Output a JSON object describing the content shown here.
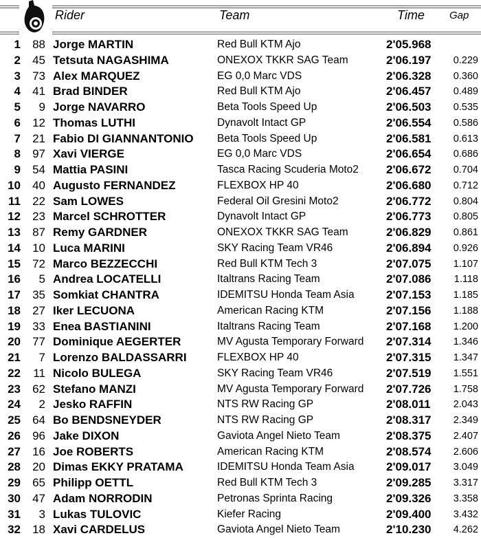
{
  "header": {
    "rider": "Rider",
    "team": "Team",
    "time": "Time",
    "gap": "Gap",
    "logo_icon": "motorcycle-rider-icon"
  },
  "rows": [
    {
      "pos": "1",
      "num": "88",
      "rider": "Jorge MARTIN",
      "team": "Red Bull KTM Ajo",
      "time": "2'05.968",
      "gap": ""
    },
    {
      "pos": "2",
      "num": "45",
      "rider": "Tetsuta NAGASHIMA",
      "team": "ONEXOX TKKR SAG Team",
      "time": "2'06.197",
      "gap": "0.229"
    },
    {
      "pos": "3",
      "num": "73",
      "rider": "Alex MARQUEZ",
      "team": "EG 0,0 Marc VDS",
      "time": "2'06.328",
      "gap": "0.360"
    },
    {
      "pos": "4",
      "num": "41",
      "rider": "Brad BINDER",
      "team": "Red Bull KTM Ajo",
      "time": "2'06.457",
      "gap": "0.489"
    },
    {
      "pos": "5",
      "num": "9",
      "rider": "Jorge NAVARRO",
      "team": "Beta Tools Speed Up",
      "time": "2'06.503",
      "gap": "0.535"
    },
    {
      "pos": "6",
      "num": "12",
      "rider": "Thomas LUTHI",
      "team": "Dynavolt Intact GP",
      "time": "2'06.554",
      "gap": "0.586"
    },
    {
      "pos": "7",
      "num": "21",
      "rider": "Fabio DI GIANNANTONIO",
      "team": "Beta Tools Speed Up",
      "time": "2'06.581",
      "gap": "0.613"
    },
    {
      "pos": "8",
      "num": "97",
      "rider": "Xavi VIERGE",
      "team": "EG 0,0 Marc VDS",
      "time": "2'06.654",
      "gap": "0.686"
    },
    {
      "pos": "9",
      "num": "54",
      "rider": "Mattia PASINI",
      "team": "Tasca Racing Scuderia Moto2",
      "time": "2'06.672",
      "gap": "0.704"
    },
    {
      "pos": "10",
      "num": "40",
      "rider": "Augusto FERNANDEZ",
      "team": "FLEXBOX HP 40",
      "time": "2'06.680",
      "gap": "0.712"
    },
    {
      "pos": "11",
      "num": "22",
      "rider": "Sam LOWES",
      "team": "Federal Oil Gresini Moto2",
      "time": "2'06.772",
      "gap": "0.804"
    },
    {
      "pos": "12",
      "num": "23",
      "rider": "Marcel SCHROTTER",
      "team": "Dynavolt Intact GP",
      "time": "2'06.773",
      "gap": "0.805"
    },
    {
      "pos": "13",
      "num": "87",
      "rider": "Remy GARDNER",
      "team": "ONEXOX TKKR SAG Team",
      "time": "2'06.829",
      "gap": "0.861"
    },
    {
      "pos": "14",
      "num": "10",
      "rider": "Luca MARINI",
      "team": "SKY Racing Team VR46",
      "time": "2'06.894",
      "gap": "0.926"
    },
    {
      "pos": "15",
      "num": "72",
      "rider": "Marco BEZZECCHI",
      "team": "Red Bull KTM Tech 3",
      "time": "2'07.075",
      "gap": "1.107"
    },
    {
      "pos": "16",
      "num": "5",
      "rider": "Andrea LOCATELLI",
      "team": "Italtrans Racing Team",
      "time": "2'07.086",
      "gap": "1.118"
    },
    {
      "pos": "17",
      "num": "35",
      "rider": "Somkiat CHANTRA",
      "team": "IDEMITSU Honda Team Asia",
      "time": "2'07.153",
      "gap": "1.185"
    },
    {
      "pos": "18",
      "num": "27",
      "rider": "Iker LECUONA",
      "team": "American Racing KTM",
      "time": "2'07.156",
      "gap": "1.188"
    },
    {
      "pos": "19",
      "num": "33",
      "rider": "Enea BASTIANINI",
      "team": "Italtrans Racing Team",
      "time": "2'07.168",
      "gap": "1.200"
    },
    {
      "pos": "20",
      "num": "77",
      "rider": "Dominique AEGERTER",
      "team": "MV Agusta Temporary Forward",
      "time": "2'07.314",
      "gap": "1.346"
    },
    {
      "pos": "21",
      "num": "7",
      "rider": "Lorenzo BALDASSARRI",
      "team": "FLEXBOX HP 40",
      "time": "2'07.315",
      "gap": "1.347"
    },
    {
      "pos": "22",
      "num": "11",
      "rider": "Nicolo BULEGA",
      "team": "SKY Racing Team VR46",
      "time": "2'07.519",
      "gap": "1.551"
    },
    {
      "pos": "23",
      "num": "62",
      "rider": "Stefano MANZI",
      "team": "MV Agusta Temporary Forward",
      "time": "2'07.726",
      "gap": "1.758"
    },
    {
      "pos": "24",
      "num": "2",
      "rider": "Jesko RAFFIN",
      "team": "NTS RW Racing GP",
      "time": "2'08.011",
      "gap": "2.043"
    },
    {
      "pos": "25",
      "num": "64",
      "rider": "Bo BENDSNEYDER",
      "team": "NTS RW Racing GP",
      "time": "2'08.317",
      "gap": "2.349"
    },
    {
      "pos": "26",
      "num": "96",
      "rider": "Jake DIXON",
      "team": "Gaviota Angel Nieto Team",
      "time": "2'08.375",
      "gap": "2.407"
    },
    {
      "pos": "27",
      "num": "16",
      "rider": "Joe ROBERTS",
      "team": "American Racing KTM",
      "time": "2'08.574",
      "gap": "2.606"
    },
    {
      "pos": "28",
      "num": "20",
      "rider": "Dimas EKKY PRATAMA",
      "team": "IDEMITSU Honda Team Asia",
      "time": "2'09.017",
      "gap": "3.049"
    },
    {
      "pos": "29",
      "num": "65",
      "rider": "Philipp OETTL",
      "team": "Red Bull KTM Tech 3",
      "time": "2'09.285",
      "gap": "3.317"
    },
    {
      "pos": "30",
      "num": "47",
      "rider": "Adam NORRODIN",
      "team": "Petronas Sprinta Racing",
      "time": "2'09.326",
      "gap": "3.358"
    },
    {
      "pos": "31",
      "num": "3",
      "rider": "Lukas TULOVIC",
      "team": "Kiefer Racing",
      "time": "2'09.400",
      "gap": "3.432"
    },
    {
      "pos": "32",
      "num": "18",
      "rider": "Xavi CARDELUS",
      "team": "Gaviota Angel Nieto Team",
      "time": "2'10.230",
      "gap": "4.262"
    }
  ]
}
